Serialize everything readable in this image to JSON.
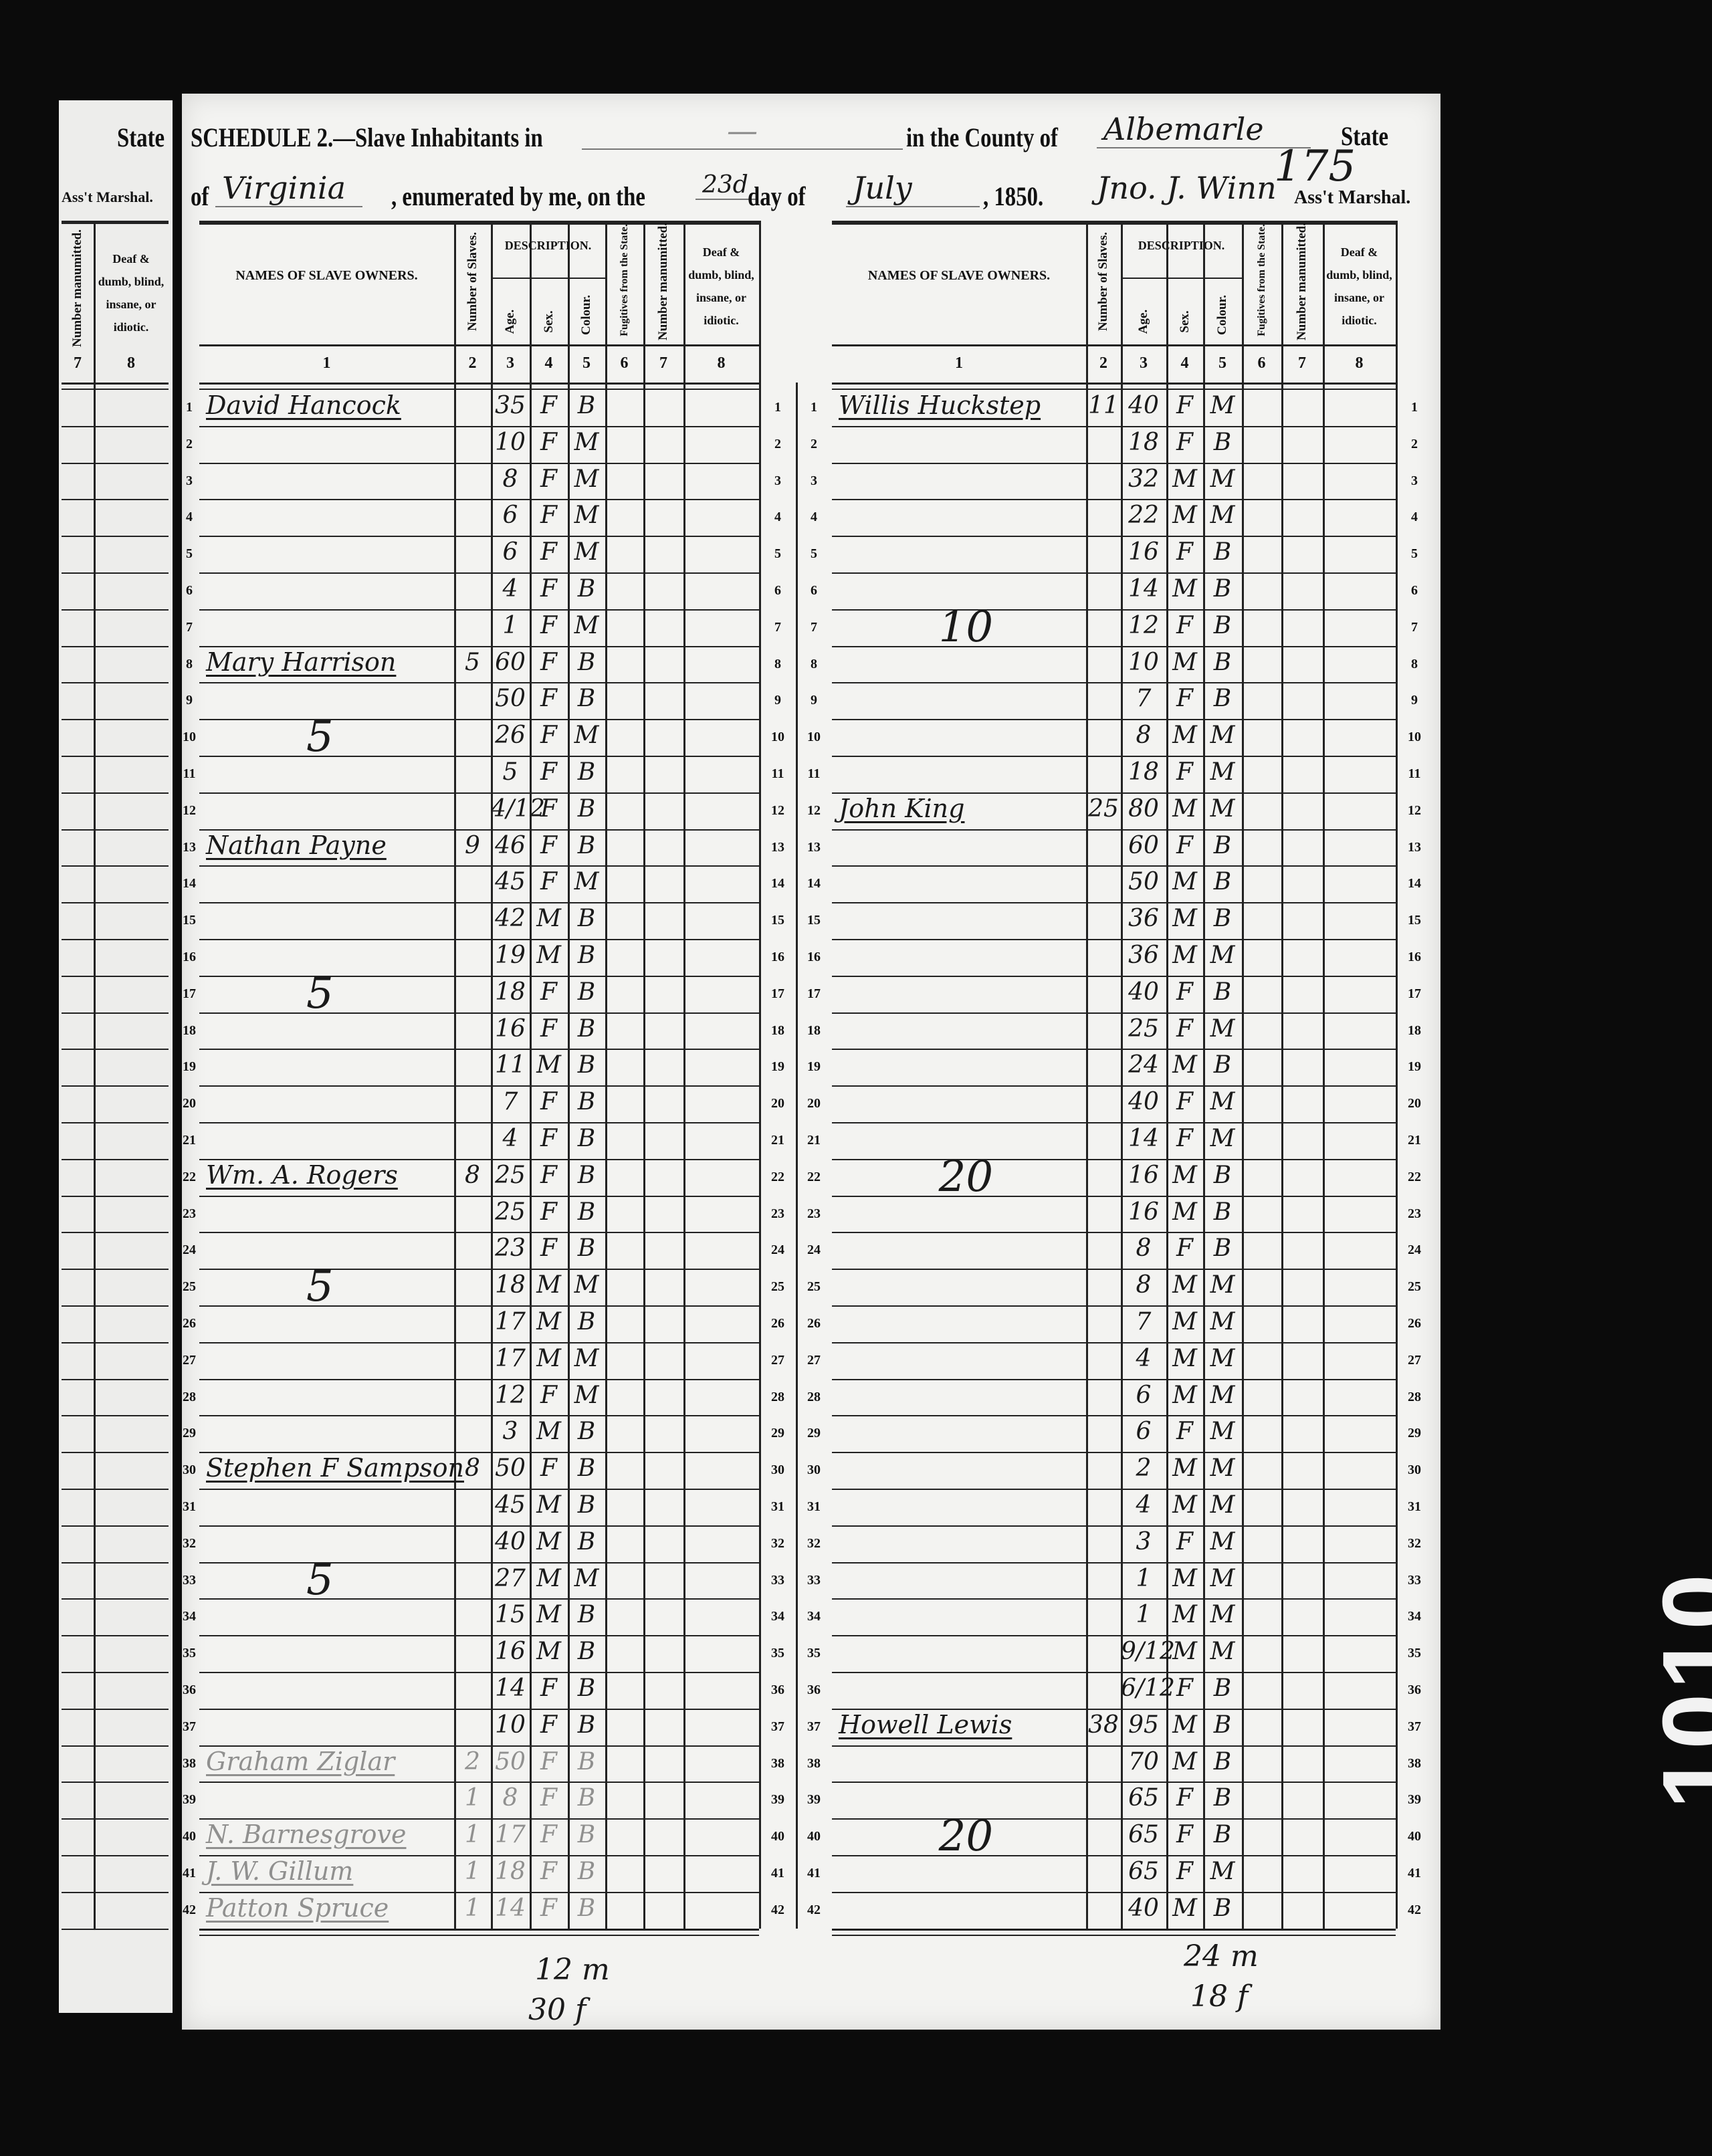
{
  "fragment": {
    "state_label": "State",
    "marshal_label": "Ass't Marshal.",
    "col7_header": "Number manumitted.",
    "col8_header": "Deaf & dumb, blind, insane, or idiotic.",
    "col_numbers": [
      "7",
      "8"
    ]
  },
  "title": {
    "schedule": "SCHEDULE 2.—Slave Inhabitants in",
    "place": "—",
    "county_label": "in the County of",
    "county": "Albemarle",
    "state_label": "State",
    "of_label": "of",
    "state": "Virginia",
    "enumerated": ", enumerated by me, on the",
    "day": "23d",
    "day_of": "day of",
    "month": "July",
    "year": ", 1850.",
    "marshal_name": "Jno. J. Winn",
    "marshal_label": "Ass't Marshal.",
    "page_number": "175"
  },
  "columns": {
    "names": "NAMES OF SLAVE OWNERS.",
    "number": "Number of Slaves.",
    "description": "DESCRIPTION.",
    "age": "Age.",
    "sex": "Sex.",
    "colour": "Colour.",
    "fugitives": "Fugitives from the State.",
    "manumitted": "Number manumitted.",
    "deaf": "Deaf & dumb, blind, insane, or idiotic.",
    "numbers": [
      "1",
      "2",
      "3",
      "4",
      "5",
      "6",
      "7",
      "8"
    ]
  },
  "left_rows": [
    {
      "line": "1",
      "owner": "David Hancock",
      "number": "",
      "age": "35",
      "sex": "F",
      "colour": "B"
    },
    {
      "line": "2",
      "owner": "",
      "number": "",
      "age": "10",
      "sex": "F",
      "colour": "M"
    },
    {
      "line": "3",
      "owner": "",
      "number": "",
      "age": "8",
      "sex": "F",
      "colour": "M"
    },
    {
      "line": "4",
      "owner": "",
      "number": "",
      "age": "6",
      "sex": "F",
      "colour": "M"
    },
    {
      "line": "5",
      "owner": "",
      "number": "",
      "age": "6",
      "sex": "F",
      "colour": "M"
    },
    {
      "line": "6",
      "owner": "",
      "number": "",
      "age": "4",
      "sex": "F",
      "colour": "B"
    },
    {
      "line": "7",
      "owner": "",
      "number": "",
      "age": "1",
      "sex": "F",
      "colour": "M"
    },
    {
      "line": "8",
      "owner": "Mary Harrison",
      "number": "5",
      "age": "60",
      "sex": "F",
      "colour": "B"
    },
    {
      "line": "9",
      "owner": "",
      "number": "",
      "age": "50",
      "sex": "F",
      "colour": "B"
    },
    {
      "line": "10",
      "owner": "",
      "number": "",
      "age": "26",
      "sex": "F",
      "colour": "M"
    },
    {
      "line": "11",
      "owner": "",
      "number": "",
      "age": "5",
      "sex": "F",
      "colour": "B"
    },
    {
      "line": "12",
      "owner": "",
      "number": "",
      "age": "4/12",
      "sex": "F",
      "colour": "B"
    },
    {
      "line": "13",
      "owner": "Nathan Payne",
      "number": "9",
      "age": "46",
      "sex": "F",
      "colour": "B"
    },
    {
      "line": "14",
      "owner": "",
      "number": "",
      "age": "45",
      "sex": "F",
      "colour": "M"
    },
    {
      "line": "15",
      "owner": "",
      "number": "",
      "age": "42",
      "sex": "M",
      "colour": "B"
    },
    {
      "line": "16",
      "owner": "",
      "number": "",
      "age": "19",
      "sex": "M",
      "colour": "B"
    },
    {
      "line": "17",
      "owner": "",
      "number": "",
      "age": "18",
      "sex": "F",
      "colour": "B"
    },
    {
      "line": "18",
      "owner": "",
      "number": "",
      "age": "16",
      "sex": "F",
      "colour": "B"
    },
    {
      "line": "19",
      "owner": "",
      "number": "",
      "age": "11",
      "sex": "M",
      "colour": "B"
    },
    {
      "line": "20",
      "owner": "",
      "number": "",
      "age": "7",
      "sex": "F",
      "colour": "B"
    },
    {
      "line": "21",
      "owner": "",
      "number": "",
      "age": "4",
      "sex": "F",
      "colour": "B"
    },
    {
      "line": "22",
      "owner": "Wm. A. Rogers",
      "number": "8",
      "age": "25",
      "sex": "F",
      "colour": "B"
    },
    {
      "line": "23",
      "owner": "",
      "number": "",
      "age": "25",
      "sex": "F",
      "colour": "B"
    },
    {
      "line": "24",
      "owner": "",
      "number": "",
      "age": "23",
      "sex": "F",
      "colour": "B"
    },
    {
      "line": "25",
      "owner": "",
      "number": "",
      "age": "18",
      "sex": "M",
      "colour": "M"
    },
    {
      "line": "26",
      "owner": "",
      "number": "",
      "age": "17",
      "sex": "M",
      "colour": "B"
    },
    {
      "line": "27",
      "owner": "",
      "number": "",
      "age": "17",
      "sex": "M",
      "colour": "M"
    },
    {
      "line": "28",
      "owner": "",
      "number": "",
      "age": "12",
      "sex": "F",
      "colour": "M"
    },
    {
      "line": "29",
      "owner": "",
      "number": "",
      "age": "3",
      "sex": "M",
      "colour": "B"
    },
    {
      "line": "30",
      "owner": "Stephen F Sampson",
      "number": "8",
      "age": "50",
      "sex": "F",
      "colour": "B"
    },
    {
      "line": "31",
      "owner": "",
      "number": "",
      "age": "45",
      "sex": "M",
      "colour": "B"
    },
    {
      "line": "32",
      "owner": "",
      "number": "",
      "age": "40",
      "sex": "M",
      "colour": "B"
    },
    {
      "line": "33",
      "owner": "",
      "number": "",
      "age": "27",
      "sex": "M",
      "colour": "M"
    },
    {
      "line": "34",
      "owner": "",
      "number": "",
      "age": "15",
      "sex": "M",
      "colour": "B"
    },
    {
      "line": "35",
      "owner": "",
      "number": "",
      "age": "16",
      "sex": "M",
      "colour": "B"
    },
    {
      "line": "36",
      "owner": "",
      "number": "",
      "age": "14",
      "sex": "F",
      "colour": "B"
    },
    {
      "line": "37",
      "owner": "",
      "number": "",
      "age": "10",
      "sex": "F",
      "colour": "B"
    },
    {
      "line": "38",
      "owner": "Graham Ziglar",
      "number": "2",
      "age": "50",
      "sex": "F",
      "colour": "B",
      "faint": true
    },
    {
      "line": "39",
      "owner": "",
      "number": "1",
      "age": "8",
      "sex": "F",
      "colour": "B",
      "faint": true
    },
    {
      "line": "40",
      "owner": "N. Barnesgrove",
      "number": "1",
      "age": "17",
      "sex": "F",
      "colour": "B",
      "faint": true
    },
    {
      "line": "41",
      "owner": "J. W. Gillum",
      "number": "1",
      "age": "18",
      "sex": "F",
      "colour": "B",
      "faint": true
    },
    {
      "line": "42",
      "owner": "Patton Spruce",
      "number": "1",
      "age": "14",
      "sex": "F",
      "colour": "B",
      "faint": true
    }
  ],
  "right_rows": [
    {
      "line": "1",
      "owner": "Willis Huckstep",
      "number": "11",
      "age": "40",
      "sex": "F",
      "colour": "M"
    },
    {
      "line": "2",
      "owner": "",
      "number": "",
      "age": "18",
      "sex": "F",
      "colour": "B"
    },
    {
      "line": "3",
      "owner": "",
      "number": "",
      "age": "32",
      "sex": "M",
      "colour": "M"
    },
    {
      "line": "4",
      "owner": "",
      "number": "",
      "age": "22",
      "sex": "M",
      "colour": "M"
    },
    {
      "line": "5",
      "owner": "",
      "number": "",
      "age": "16",
      "sex": "F",
      "colour": "B"
    },
    {
      "line": "6",
      "owner": "",
      "number": "",
      "age": "14",
      "sex": "M",
      "colour": "B"
    },
    {
      "line": "7",
      "owner": "",
      "number": "",
      "age": "12",
      "sex": "F",
      "colour": "B"
    },
    {
      "line": "8",
      "owner": "",
      "number": "",
      "age": "10",
      "sex": "M",
      "colour": "B"
    },
    {
      "line": "9",
      "owner": "",
      "number": "",
      "age": "7",
      "sex": "F",
      "colour": "B"
    },
    {
      "line": "10",
      "owner": "",
      "number": "",
      "age": "8",
      "sex": "M",
      "colour": "M"
    },
    {
      "line": "11",
      "owner": "",
      "number": "",
      "age": "18",
      "sex": "F",
      "colour": "M"
    },
    {
      "line": "12",
      "owner": "John King",
      "number": "25",
      "age": "80",
      "sex": "M",
      "colour": "M"
    },
    {
      "line": "13",
      "owner": "",
      "number": "",
      "age": "60",
      "sex": "F",
      "colour": "B"
    },
    {
      "line": "14",
      "owner": "",
      "number": "",
      "age": "50",
      "sex": "M",
      "colour": "B"
    },
    {
      "line": "15",
      "owner": "",
      "number": "",
      "age": "36",
      "sex": "M",
      "colour": "B"
    },
    {
      "line": "16",
      "owner": "",
      "number": "",
      "age": "36",
      "sex": "M",
      "colour": "M"
    },
    {
      "line": "17",
      "owner": "",
      "number": "",
      "age": "40",
      "sex": "F",
      "colour": "B"
    },
    {
      "line": "18",
      "owner": "",
      "number": "",
      "age": "25",
      "sex": "F",
      "colour": "M"
    },
    {
      "line": "19",
      "owner": "",
      "number": "",
      "age": "24",
      "sex": "M",
      "colour": "B"
    },
    {
      "line": "20",
      "owner": "",
      "number": "",
      "age": "40",
      "sex": "F",
      "colour": "M"
    },
    {
      "line": "21",
      "owner": "",
      "number": "",
      "age": "14",
      "sex": "F",
      "colour": "M"
    },
    {
      "line": "22",
      "owner": "",
      "number": "",
      "age": "16",
      "sex": "M",
      "colour": "B"
    },
    {
      "line": "23",
      "owner": "",
      "number": "",
      "age": "16",
      "sex": "M",
      "colour": "B"
    },
    {
      "line": "24",
      "owner": "",
      "number": "",
      "age": "8",
      "sex": "F",
      "colour": "B"
    },
    {
      "line": "25",
      "owner": "",
      "number": "",
      "age": "8",
      "sex": "M",
      "colour": "M"
    },
    {
      "line": "26",
      "owner": "",
      "number": "",
      "age": "7",
      "sex": "M",
      "colour": "M"
    },
    {
      "line": "27",
      "owner": "",
      "number": "",
      "age": "4",
      "sex": "M",
      "colour": "M"
    },
    {
      "line": "28",
      "owner": "",
      "number": "",
      "age": "6",
      "sex": "M",
      "colour": "M"
    },
    {
      "line": "29",
      "owner": "",
      "number": "",
      "age": "6",
      "sex": "F",
      "colour": "M"
    },
    {
      "line": "30",
      "owner": "",
      "number": "",
      "age": "2",
      "sex": "M",
      "colour": "M"
    },
    {
      "line": "31",
      "owner": "",
      "number": "",
      "age": "4",
      "sex": "M",
      "colour": "M"
    },
    {
      "line": "32",
      "owner": "",
      "number": "",
      "age": "3",
      "sex": "F",
      "colour": "M"
    },
    {
      "line": "33",
      "owner": "",
      "number": "",
      "age": "1",
      "sex": "M",
      "colour": "M"
    },
    {
      "line": "34",
      "owner": "",
      "number": "",
      "age": "1",
      "sex": "M",
      "colour": "M"
    },
    {
      "line": "35",
      "owner": "",
      "number": "",
      "age": "9/12",
      "sex": "M",
      "colour": "M"
    },
    {
      "line": "36",
      "owner": "",
      "number": "",
      "age": "6/12",
      "sex": "F",
      "colour": "B"
    },
    {
      "line": "37",
      "owner": "Howell Lewis",
      "number": "38",
      "age": "95",
      "sex": "M",
      "colour": "B"
    },
    {
      "line": "38",
      "owner": "",
      "number": "",
      "age": "70",
      "sex": "M",
      "colour": "B"
    },
    {
      "line": "39",
      "owner": "",
      "number": "",
      "age": "65",
      "sex": "F",
      "colour": "B"
    },
    {
      "line": "40",
      "owner": "",
      "number": "",
      "age": "65",
      "sex": "F",
      "colour": "B"
    },
    {
      "line": "41",
      "owner": "",
      "number": "",
      "age": "65",
      "sex": "F",
      "colour": "M"
    },
    {
      "line": "42",
      "owner": "",
      "number": "",
      "age": "40",
      "sex": "M",
      "colour": "B"
    }
  ],
  "left_tallies": [
    {
      "line": "10",
      "text": "5"
    },
    {
      "line": "17",
      "text": "5"
    },
    {
      "line": "25",
      "text": "5"
    },
    {
      "line": "33",
      "text": "5"
    }
  ],
  "right_tallies": [
    {
      "line": "7",
      "text": "10"
    },
    {
      "line": "22",
      "text": "20"
    },
    {
      "line": "40",
      "text": "20"
    }
  ],
  "totals": {
    "left_male": "12 m",
    "left_female": "30 f",
    "right_male": "24 m",
    "right_female": "18 f"
  },
  "edge_stamp": "1010",
  "colors": {
    "background": "#0b0b0b",
    "paper": "#f3f3f1",
    "ink": "#111111"
  }
}
